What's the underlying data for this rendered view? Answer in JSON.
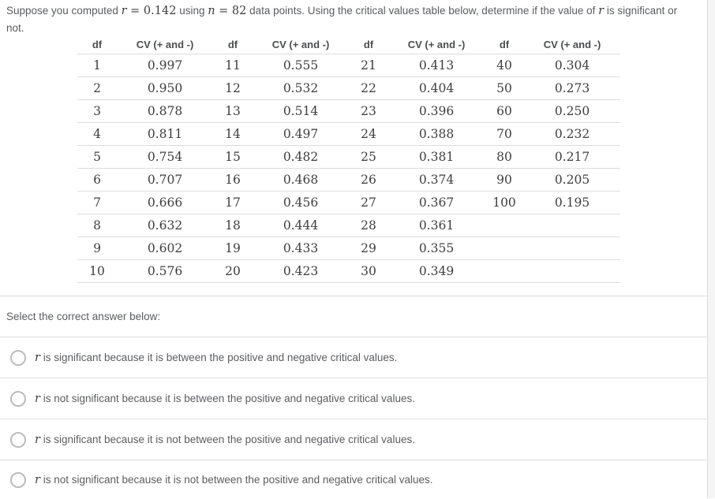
{
  "colors": {
    "background": "#ffffff",
    "right_strip": "#f5f5f6",
    "divider": "#dddddd",
    "table_border": "#dcdcdc",
    "sans_text": "#5b5d60",
    "math_text": "#3e3e3e",
    "radio_border": "#bcbcbc"
  },
  "question": {
    "pre": "Suppose you computed ",
    "math1_var": "r",
    "math1_rest": " = 0.142",
    "mid1": " using ",
    "math2_var": "n",
    "math2_rest": " = 82",
    "mid2": " data points. Using the critical values table below, determine if the value of ",
    "math3_var": "r",
    "post": " is significant or not."
  },
  "table": {
    "headers": [
      "df",
      "CV (+ and -)",
      "df",
      "CV (+ and -)",
      "df",
      "CV (+ and -)",
      "df",
      "CV (+ and -)"
    ],
    "rows": [
      [
        "1",
        "0.997",
        "11",
        "0.555",
        "21",
        "0.413",
        "40",
        "0.304"
      ],
      [
        "2",
        "0.950",
        "12",
        "0.532",
        "22",
        "0.404",
        "50",
        "0.273"
      ],
      [
        "3",
        "0.878",
        "13",
        "0.514",
        "23",
        "0.396",
        "60",
        "0.250"
      ],
      [
        "4",
        "0.811",
        "14",
        "0.497",
        "24",
        "0.388",
        "70",
        "0.232"
      ],
      [
        "5",
        "0.754",
        "15",
        "0.482",
        "25",
        "0.381",
        "80",
        "0.217"
      ],
      [
        "6",
        "0.707",
        "16",
        "0.468",
        "26",
        "0.374",
        "90",
        "0.205"
      ],
      [
        "7",
        "0.666",
        "17",
        "0.456",
        "27",
        "0.367",
        "100",
        "0.195"
      ],
      [
        "8",
        "0.632",
        "18",
        "0.444",
        "28",
        "0.361",
        "",
        ""
      ],
      [
        "9",
        "0.602",
        "19",
        "0.433",
        "29",
        "0.355",
        "",
        ""
      ],
      [
        "10",
        "0.576",
        "20",
        "0.423",
        "30",
        "0.349",
        "",
        ""
      ]
    ]
  },
  "prompt": {
    "label": "Select the correct answer below:"
  },
  "options": [
    {
      "var": "r",
      "text": " is significant because it is between the positive and negative critical values.",
      "selected": false
    },
    {
      "var": "r",
      "text": " is not significant because it is between the positive and negative critical values.",
      "selected": false
    },
    {
      "var": "r",
      "text": " is significant because it is not between the positive and negative critical values.",
      "selected": false
    },
    {
      "var": "r",
      "text": " is not significant because it is not between the positive and negative critical values.",
      "selected": false
    }
  ]
}
